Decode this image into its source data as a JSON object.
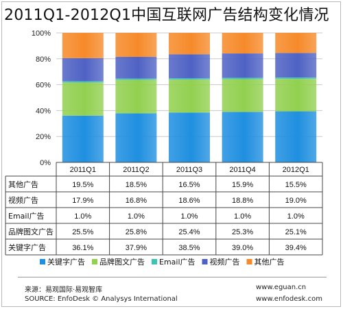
{
  "title": "2011Q1-2012Q1中国互联网广告结构变化情况",
  "footer": {
    "source_cn": "来源：易观国际·易观智库",
    "source_en": "SOURCE: EnfoDesk © Analysys International",
    "site1": "www.eguan.cn",
    "site2": "www.enfodesk.com"
  },
  "chart_data": {
    "type": "bar",
    "stacked": true,
    "percent": true,
    "categories": [
      "2011Q1",
      "2011Q2",
      "2011Q3",
      "2011Q4",
      "2012Q1"
    ],
    "y_ticks": [
      "0%",
      "20%",
      "40%",
      "60%",
      "80%",
      "100%"
    ],
    "ylim": [
      0,
      100
    ],
    "grid": true,
    "legend_position": "bottom",
    "series": [
      {
        "name": "关键字广告",
        "values": [
          36.1,
          37.9,
          38.5,
          39.0,
          39.4
        ],
        "labels": [
          "36.1%",
          "37.9%",
          "38.5%",
          "39.0%",
          "39.4%"
        ],
        "color": "#1f8fe0"
      },
      {
        "name": "品牌图文广告",
        "values": [
          25.5,
          25.8,
          25.4,
          25.3,
          25.1
        ],
        "labels": [
          "25.5%",
          "25.8%",
          "25.4%",
          "25.3%",
          "25.1%"
        ],
        "color": "#92d050"
      },
      {
        "name": "Email广告",
        "values": [
          1.0,
          1.0,
          1.0,
          1.0,
          1.0
        ],
        "labels": [
          "1.0%",
          "1.0%",
          "1.0%",
          "1.0%",
          "1.0%"
        ],
        "color": "#39c4b4"
      },
      {
        "name": "视频广告",
        "values": [
          17.9,
          16.8,
          18.6,
          18.8,
          19.0
        ],
        "labels": [
          "17.9%",
          "16.8%",
          "18.6%",
          "18.8%",
          "19.0%"
        ],
        "color": "#4f62c4"
      },
      {
        "name": "其他广告",
        "values": [
          19.5,
          18.5,
          16.5,
          15.9,
          15.5
        ],
        "labels": [
          "19.5%",
          "18.5%",
          "16.5%",
          "15.9%",
          "15.5%"
        ],
        "color": "#f68a2a"
      }
    ],
    "table_row_order": [
      "其他广告",
      "视频广告",
      "Email广告",
      "品牌图文广告",
      "关键字广告"
    ]
  }
}
